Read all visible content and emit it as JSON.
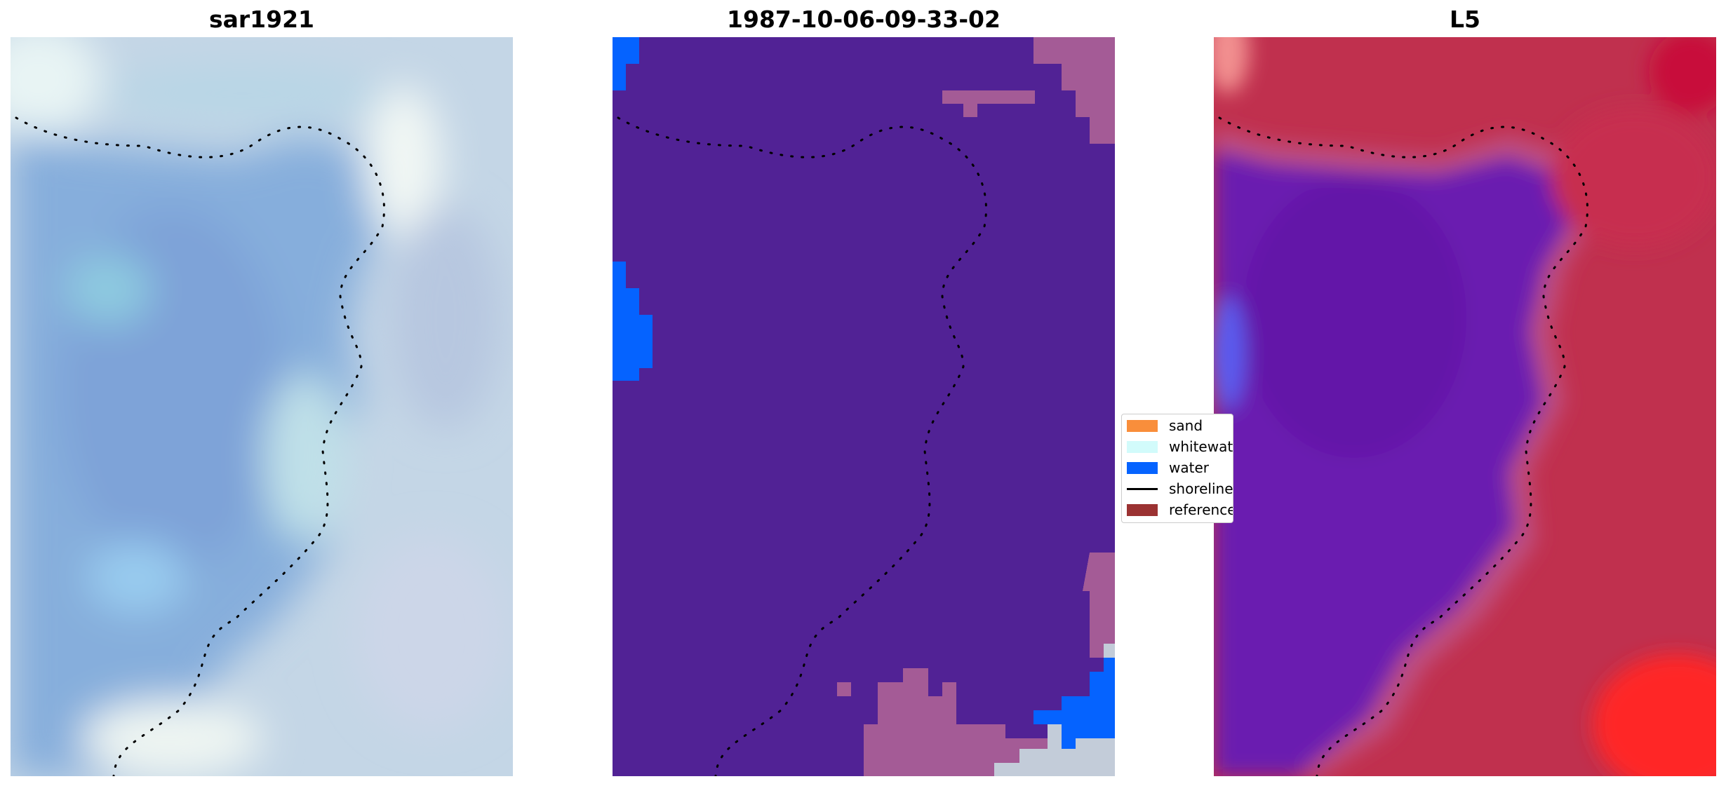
{
  "panels": [
    {
      "title": "sar1921",
      "type": "rgb-composite"
    },
    {
      "title": "1987-10-06-09-33-02",
      "type": "classification"
    },
    {
      "title": "L5",
      "type": "index-map"
    }
  ],
  "legend": {
    "items": [
      {
        "label": "sand",
        "color": "#f98e3b",
        "kind": "patch"
      },
      {
        "label": "whitewater",
        "color": "#d2fbfb",
        "kind": "patch"
      },
      {
        "label": "water",
        "color": "#0563ff",
        "kind": "patch"
      },
      {
        "label": "shoreline",
        "color": "#000000",
        "kind": "line"
      },
      {
        "label": "reference",
        "color": "#9b3232",
        "kind": "patch"
      }
    ]
  },
  "colors": {
    "rgb_base": "#8fb2dc",
    "rgb_light": "#c9dde6",
    "class_sea": "#512295",
    "class_water": "#0563ff",
    "class_pink": "#a45b96",
    "class_pale": "#c3ccd9",
    "index_purple": "#6a1ab0",
    "index_pink": "#c0304e",
    "index_red": "#ff2828",
    "shoreline": "#000000"
  }
}
